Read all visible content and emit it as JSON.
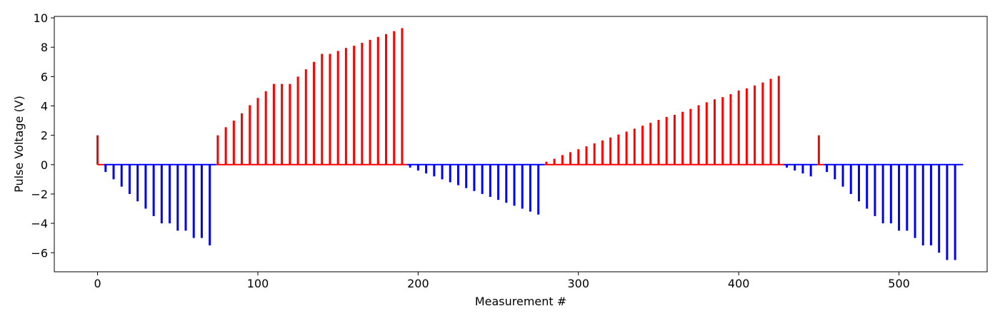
{
  "chart_data": {
    "type": "bar",
    "title": "",
    "xlabel": "Measurement #",
    "ylabel": "Pulse Voltage (V)",
    "xlim": [
      -27,
      555
    ],
    "ylim": [
      -7.3,
      10.1
    ],
    "xticks": [
      0,
      100,
      200,
      300,
      400,
      500
    ],
    "yticks": [
      -6,
      -4,
      -2,
      0,
      2,
      4,
      6,
      8,
      10
    ],
    "grid": false,
    "legend": "none",
    "colors": {
      "positive": "#ff0000",
      "negative": "#0000ff",
      "axes": "#000000"
    },
    "baseline_segments": [
      {
        "x": [
          0,
          4
        ],
        "color": "#ff0000"
      },
      {
        "x": [
          4,
          74
        ],
        "color": "#0000ff"
      },
      {
        "x": [
          74,
          193
        ],
        "color": "#ff0000"
      },
      {
        "x": [
          193,
          279
        ],
        "color": "#0000ff"
      },
      {
        "x": [
          279,
          428
        ],
        "color": "#ff0000"
      },
      {
        "x": [
          428,
          449
        ],
        "color": "#0000ff"
      },
      {
        "x": [
          449,
          453
        ],
        "color": "#ff0000"
      },
      {
        "x": [
          453,
          540
        ],
        "color": "#0000ff"
      }
    ],
    "series": [
      {
        "color": "#ff0000",
        "x": [
          0,
          75,
          80,
          85,
          90,
          95,
          100,
          105,
          110,
          115,
          120,
          125,
          130,
          135,
          140,
          145,
          150,
          155,
          160,
          165,
          170,
          175,
          180,
          185,
          190,
          280,
          285,
          290,
          295,
          300,
          305,
          310,
          315,
          320,
          325,
          330,
          335,
          340,
          345,
          350,
          355,
          360,
          365,
          370,
          375,
          380,
          385,
          390,
          395,
          400,
          405,
          410,
          415,
          420,
          425,
          450
        ],
        "values": [
          2.0,
          2.0,
          2.55,
          3.0,
          3.5,
          4.05,
          4.55,
          5.0,
          5.5,
          5.5,
          5.5,
          6.0,
          6.5,
          7.0,
          7.55,
          7.55,
          7.75,
          7.95,
          8.1,
          8.3,
          8.5,
          8.7,
          8.9,
          9.1,
          9.3,
          0.2,
          0.4,
          0.65,
          0.85,
          1.05,
          1.25,
          1.45,
          1.65,
          1.85,
          2.05,
          2.25,
          2.45,
          2.65,
          2.85,
          3.05,
          3.25,
          3.4,
          3.6,
          3.8,
          4.05,
          4.25,
          4.45,
          4.6,
          4.8,
          5.05,
          5.2,
          5.4,
          5.6,
          5.85,
          6.05,
          2.0
        ]
      },
      {
        "color": "#0000ff",
        "x": [
          5,
          10,
          15,
          20,
          25,
          30,
          35,
          40,
          45,
          50,
          55,
          60,
          65,
          70,
          195,
          200,
          205,
          210,
          215,
          220,
          225,
          230,
          235,
          240,
          245,
          250,
          255,
          260,
          265,
          270,
          275,
          430,
          435,
          440,
          445,
          455,
          460,
          465,
          470,
          475,
          480,
          485,
          490,
          495,
          500,
          505,
          510,
          515,
          520,
          525,
          530,
          535
        ],
        "values": [
          -0.5,
          -1.0,
          -1.5,
          -2.0,
          -2.5,
          -3.0,
          -3.5,
          -4.0,
          -4.0,
          -4.5,
          -4.5,
          -5.0,
          -5.0,
          -5.5,
          -0.2,
          -0.4,
          -0.6,
          -0.8,
          -1.0,
          -1.2,
          -1.4,
          -1.6,
          -1.8,
          -2.0,
          -2.2,
          -2.4,
          -2.6,
          -2.8,
          -3.0,
          -3.2,
          -3.4,
          -0.2,
          -0.4,
          -0.6,
          -0.8,
          -0.5,
          -1.0,
          -1.5,
          -2.0,
          -2.5,
          -3.0,
          -3.5,
          -4.0,
          -4.0,
          -4.5,
          -4.5,
          -5.0,
          -5.5,
          -5.5,
          -6.0,
          -6.5,
          -6.5
        ]
      }
    ]
  }
}
